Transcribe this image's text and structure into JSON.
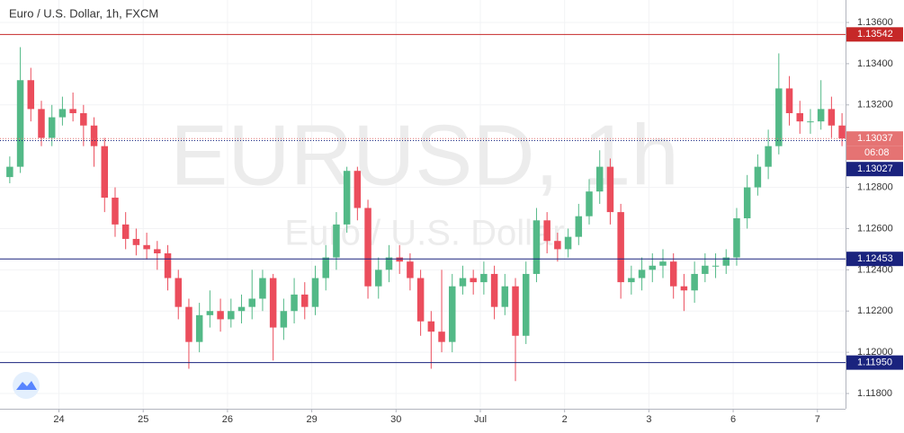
{
  "chart_data": {
    "type": "candlestick",
    "title": "Euro / U.S. Dollar, 1h, FXCM",
    "watermark": "EURUSD, 1h",
    "watermark_subtitle": "Euro / U.S. Dollar",
    "up_color": "#53b987",
    "down_color": "#eb4d5c",
    "grid": true,
    "xlim": [
      -0.5,
      239
    ],
    "ylim": [
      1.11726,
      1.13709
    ],
    "xticks": [
      {
        "value": 15,
        "label": "24"
      },
      {
        "value": 39,
        "label": "25"
      },
      {
        "value": 63,
        "label": "26"
      },
      {
        "value": 87,
        "label": "29"
      },
      {
        "value": 111,
        "label": "30"
      },
      {
        "value": 135,
        "label": "Jul"
      },
      {
        "value": 159,
        "label": "2"
      },
      {
        "value": 183,
        "label": "3"
      },
      {
        "value": 207,
        "label": "6"
      },
      {
        "value": 231,
        "label": "7"
      }
    ],
    "yticks": [
      {
        "value": 1.136,
        "label": "1.13600"
      },
      {
        "value": 1.134,
        "label": "1.13400"
      },
      {
        "value": 1.132,
        "label": "1.13200"
      },
      {
        "value": 1.128,
        "label": "1.12800"
      },
      {
        "value": 1.126,
        "label": "1.12600"
      },
      {
        "value": 1.124,
        "label": "1.12400"
      },
      {
        "value": 1.122,
        "label": "1.12200"
      },
      {
        "value": 1.12,
        "label": "1.12000"
      },
      {
        "value": 1.118,
        "label": "1.11800"
      }
    ],
    "price_lines": [
      {
        "value": 1.13542,
        "label": "1.13542",
        "color": "#c62828",
        "style": "solid"
      },
      {
        "value": 1.13037,
        "label": "1.13037",
        "color": "#e57373",
        "style": "dotted"
      },
      {
        "value": 1.13027,
        "label": "1.13027",
        "color": "#1a237e",
        "style": "dotted"
      },
      {
        "value": 1.12453,
        "label": "1.12453",
        "color": "#1a237e",
        "style": "solid"
      },
      {
        "value": 1.1195,
        "label": "1.11950",
        "color": "#1a237e",
        "style": "solid"
      }
    ],
    "countdown": "06:08",
    "x": [
      1,
      4,
      7,
      10,
      13,
      16,
      19,
      22,
      25,
      28,
      31,
      34,
      37,
      40,
      43,
      46,
      49,
      52,
      55,
      58,
      61,
      64,
      67,
      70,
      73,
      76,
      79,
      82,
      85,
      88,
      91,
      94,
      97,
      100,
      103,
      106,
      109,
      112,
      115,
      118,
      121,
      124,
      127,
      130,
      133,
      136,
      139,
      142,
      145,
      148,
      151,
      154,
      157,
      160,
      163,
      166,
      169,
      172,
      175,
      178,
      181,
      184,
      187,
      190,
      193,
      196,
      199,
      202,
      205,
      208,
      211,
      214,
      217,
      220,
      223,
      226,
      229,
      232,
      235,
      238
    ],
    "open": [
      1.1285,
      1.129,
      1.1332,
      1.1318,
      1.1304,
      1.1314,
      1.1318,
      1.1316,
      1.131,
      1.13,
      1.1275,
      1.1262,
      1.1255,
      1.1252,
      1.125,
      1.1248,
      1.1236,
      1.1222,
      1.1205,
      1.1218,
      1.122,
      1.1216,
      1.122,
      1.1222,
      1.1226,
      1.1236,
      1.1212,
      1.122,
      1.1228,
      1.1222,
      1.1236,
      1.1246,
      1.1262,
      1.1288,
      1.127,
      1.1232,
      1.124,
      1.1246,
      1.1244,
      1.1236,
      1.1215,
      1.121,
      1.1205,
      1.1232,
      1.1236,
      1.1234,
      1.1238,
      1.1222,
      1.1232,
      1.1208,
      1.1238,
      1.1264,
      1.1254,
      1.125,
      1.1256,
      1.1266,
      1.1278,
      1.129,
      1.1268,
      1.1234,
      1.1236,
      1.124,
      1.1242,
      1.1244,
      1.1232,
      1.123,
      1.1238,
      1.1242,
      1.1242,
      1.1246,
      1.1265,
      1.128,
      1.129,
      1.13,
      1.1328,
      1.1316,
      1.1312,
      1.1312,
      1.1318,
      1.131
    ],
    "high": [
      1.1295,
      1.1348,
      1.1338,
      1.1322,
      1.132,
      1.1324,
      1.1326,
      1.132,
      1.1314,
      1.1304,
      1.128,
      1.1268,
      1.126,
      1.1258,
      1.1254,
      1.1252,
      1.124,
      1.1226,
      1.1224,
      1.123,
      1.1226,
      1.1226,
      1.1228,
      1.124,
      1.124,
      1.1238,
      1.1226,
      1.1236,
      1.1234,
      1.1242,
      1.1252,
      1.1268,
      1.129,
      1.129,
      1.1274,
      1.1246,
      1.1252,
      1.1252,
      1.1248,
      1.124,
      1.122,
      1.124,
      1.1238,
      1.1242,
      1.124,
      1.1244,
      1.1242,
      1.1238,
      1.1236,
      1.1244,
      1.127,
      1.1268,
      1.1258,
      1.126,
      1.1272,
      1.1284,
      1.1298,
      1.1294,
      1.1272,
      1.1242,
      1.1246,
      1.1248,
      1.125,
      1.1248,
      1.1238,
      1.1244,
      1.1248,
      1.1248,
      1.125,
      1.127,
      1.1286,
      1.1296,
      1.1308,
      1.1345,
      1.1334,
      1.1322,
      1.1318,
      1.1332,
      1.1324,
      1.1316
    ],
    "low": [
      1.1282,
      1.1287,
      1.1312,
      1.13,
      1.13,
      1.131,
      1.1312,
      1.13,
      1.129,
      1.1268,
      1.1256,
      1.125,
      1.1247,
      1.1245,
      1.124,
      1.123,
      1.1216,
      1.1192,
      1.12,
      1.1212,
      1.121,
      1.1212,
      1.1214,
      1.1216,
      1.122,
      1.1196,
      1.1206,
      1.1214,
      1.1216,
      1.1218,
      1.123,
      1.124,
      1.1258,
      1.1264,
      1.1226,
      1.1226,
      1.1234,
      1.1238,
      1.123,
      1.1208,
      1.1192,
      1.12,
      1.12,
      1.1228,
      1.1228,
      1.1228,
      1.1216,
      1.1218,
      1.1186,
      1.1204,
      1.1234,
      1.1248,
      1.1244,
      1.1246,
      1.1252,
      1.1262,
      1.1272,
      1.1262,
      1.1226,
      1.1228,
      1.123,
      1.1234,
      1.1236,
      1.1226,
      1.122,
      1.1224,
      1.1234,
      1.1236,
      1.1238,
      1.1242,
      1.126,
      1.1276,
      1.1284,
      1.1296,
      1.131,
      1.1306,
      1.1306,
      1.1308,
      1.1304,
      1.13
    ],
    "close": [
      1.129,
      1.1332,
      1.1318,
      1.1304,
      1.1314,
      1.1318,
      1.1316,
      1.131,
      1.13,
      1.1275,
      1.1262,
      1.1255,
      1.1252,
      1.125,
      1.1248,
      1.1236,
      1.1222,
      1.1205,
      1.1218,
      1.122,
      1.1216,
      1.122,
      1.1222,
      1.1226,
      1.1236,
      1.1212,
      1.122,
      1.1228,
      1.1222,
      1.1236,
      1.1246,
      1.1262,
      1.1288,
      1.127,
      1.1232,
      1.124,
      1.1246,
      1.1244,
      1.1236,
      1.1215,
      1.121,
      1.1205,
      1.1232,
      1.1236,
      1.1234,
      1.1238,
      1.1222,
      1.1232,
      1.1208,
      1.1238,
      1.1264,
      1.1254,
      1.125,
      1.1256,
      1.1266,
      1.1278,
      1.129,
      1.1268,
      1.1234,
      1.1236,
      1.124,
      1.1242,
      1.1244,
      1.1232,
      1.123,
      1.1238,
      1.1242,
      1.1242,
      1.1246,
      1.1265,
      1.128,
      1.129,
      1.13,
      1.1328,
      1.1316,
      1.1312,
      1.1312,
      1.1318,
      1.131,
      1.13037
    ]
  }
}
